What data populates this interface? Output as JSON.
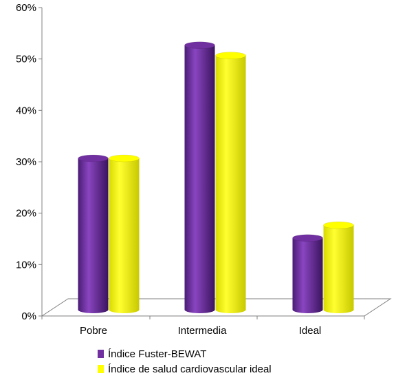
{
  "chart_data": {
    "type": "bar",
    "categories": [
      "Pobre",
      "Intermedia",
      "Ideal"
    ],
    "series": [
      {
        "name": "Índice Fuster-BEWAT",
        "values": [
          29.5,
          51.5,
          14.0
        ],
        "color": "#7030a0"
      },
      {
        "name": "Índice de salud cardiovascular ideal",
        "values": [
          29.5,
          49.5,
          16.5
        ],
        "color": "#ffff00"
      }
    ],
    "yticks": [
      "0%",
      "10%",
      "20%",
      "30%",
      "40%",
      "50%",
      "60%"
    ],
    "ylim": [
      0,
      60
    ],
    "style": "3d-cylinder",
    "grid": false,
    "legend_position": "bottom"
  }
}
